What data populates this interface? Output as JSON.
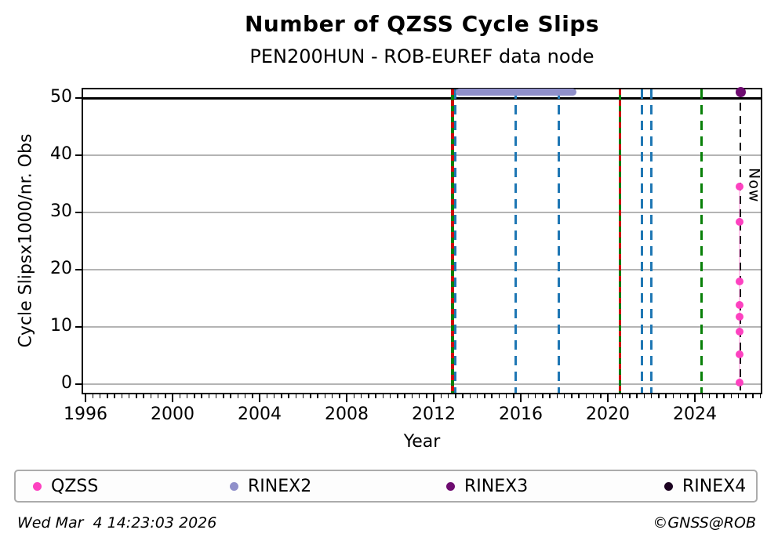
{
  "title": "Number of QZSS Cycle Slips",
  "subtitle": "PEN200HUN - ROB-EUREF data node",
  "now_label": "Now",
  "footer": {
    "timestamp": "Wed Mar  4 14:23:03 2026",
    "credit": "©GNSS@ROB"
  },
  "axes": {
    "x": {
      "label": "Year",
      "ticks": [
        "1996",
        "2000",
        "2004",
        "2008",
        "2012",
        "2016",
        "2020",
        "2024"
      ]
    },
    "y": {
      "label": "Cycle Slipsx1000/nr. Obs",
      "ticks": [
        "0",
        "10",
        "20",
        "30",
        "40",
        "50"
      ]
    }
  },
  "legend": [
    {
      "label": "QZSS",
      "color": "#fd41c0"
    },
    {
      "label": "RINEX2",
      "color": "#9090ca"
    },
    {
      "label": "RINEX3",
      "color": "#6e0b70"
    },
    {
      "label": "RINEX4",
      "color": "#1c0221"
    }
  ],
  "chart_data": {
    "type": "scatter",
    "title": "Number of QZSS Cycle Slips",
    "subtitle": "PEN200HUN - ROB-EUREF data node",
    "xlabel": "Year",
    "ylabel": "Cycle Slipsx1000/nr. Obs",
    "xlim": [
      1995.9,
      2027.2
    ],
    "ylim": [
      -1.9,
      51.9
    ],
    "grid": true,
    "gridlines": {
      "y_values": [
        0,
        10,
        20,
        30,
        40
      ],
      "color": "#b4b4b4"
    },
    "threshold_line": {
      "y": 50,
      "color": "#000000"
    },
    "series": [
      {
        "name": "QZSS",
        "color": "#fd41c0",
        "marker": "dot",
        "points": [
          [
            2026.05,
            34.5
          ],
          [
            2026.05,
            28.4
          ],
          [
            2026.05,
            18.0
          ],
          [
            2026.05,
            13.9
          ],
          [
            2026.05,
            11.8
          ],
          [
            2026.05,
            9.2
          ],
          [
            2026.05,
            5.2
          ],
          [
            2026.05,
            0.3
          ]
        ]
      },
      {
        "name": "RINEX2",
        "color": "#9090ca",
        "marker": "thick-line",
        "segment": {
          "x_start": 2013.0,
          "x_end": 2018.55,
          "y": 51
        }
      },
      {
        "name": "RINEX3",
        "color": "#6e0b70",
        "marker": "dot",
        "points": [
          [
            2026.1,
            51
          ]
        ]
      },
      {
        "name": "RINEX4",
        "color": "#1c0221",
        "marker": "dot",
        "points": []
      }
    ],
    "event_lines": [
      {
        "year": 2012.85,
        "style": "green-red-dashed",
        "colors": [
          "#cf0a0a",
          "#078007"
        ]
      },
      {
        "year": 2013.0,
        "style": "blue-dashed",
        "colors": [
          "#1f77b4"
        ]
      },
      {
        "year": 2015.75,
        "style": "blue-dashed",
        "colors": [
          "#1f77b4"
        ]
      },
      {
        "year": 2017.75,
        "style": "blue-dashed",
        "colors": [
          "#1f77b4"
        ]
      },
      {
        "year": 2020.55,
        "style": "green-red-dashed",
        "colors": [
          "#cf0a0a",
          "#078007"
        ]
      },
      {
        "year": 2021.55,
        "style": "blue-dashed",
        "colors": [
          "#1f77b4"
        ]
      },
      {
        "year": 2022.0,
        "style": "blue-dashed",
        "colors": [
          "#1f77b4"
        ]
      },
      {
        "year": 2024.3,
        "style": "green-dashed",
        "colors": [
          "#078007"
        ]
      },
      {
        "year": 2026.1,
        "style": "now-black-dashed",
        "colors": [
          "#000000"
        ],
        "label": "Now"
      }
    ]
  }
}
